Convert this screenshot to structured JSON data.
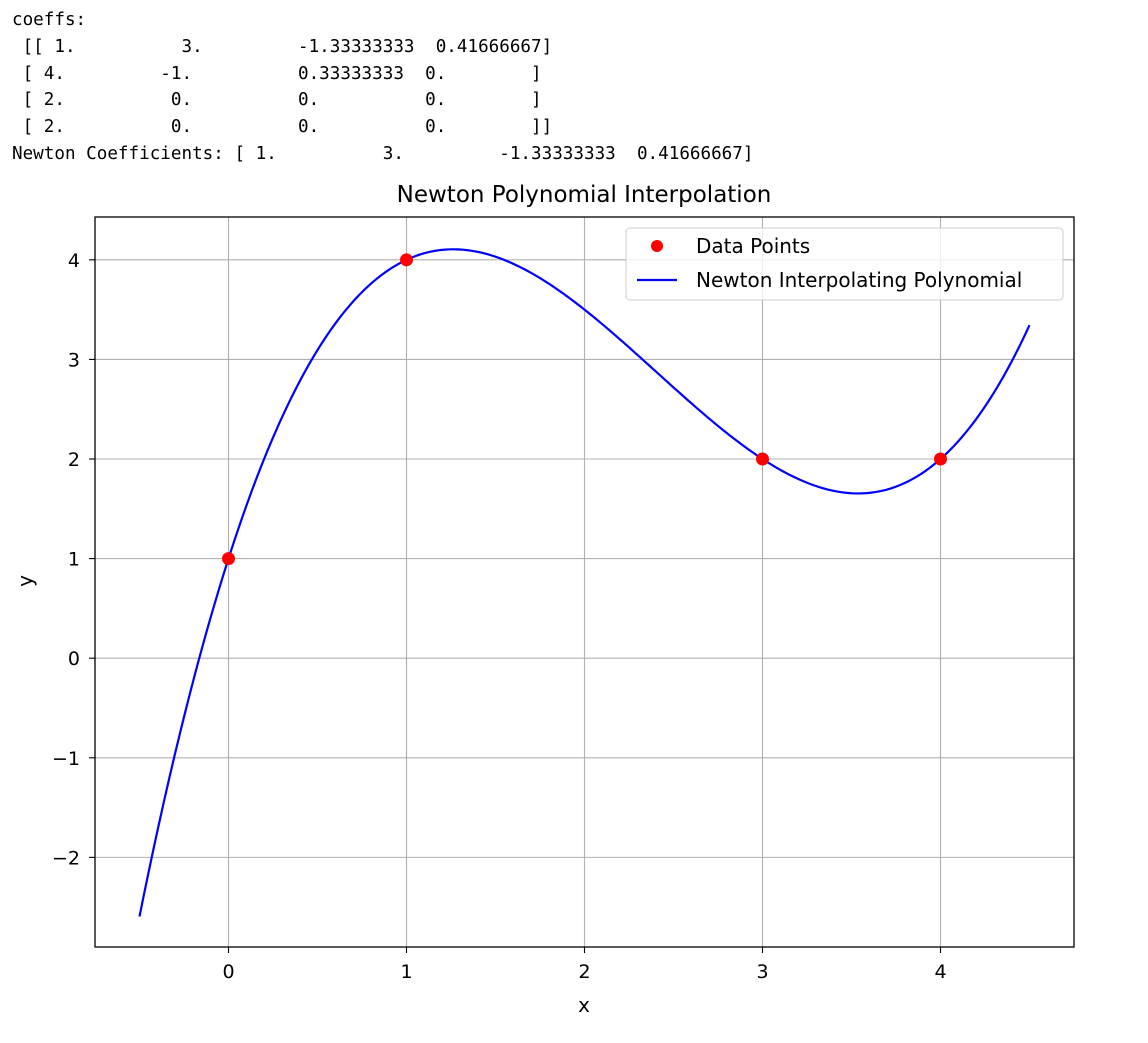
{
  "console": {
    "lines": [
      "coeffs:",
      " [[ 1.          3.         -1.33333333  0.41666667]",
      " [ 4.         -1.          0.33333333  0.        ]",
      " [ 2.          0.          0.          0.        ]",
      " [ 2.          0.          0.          0.        ]]",
      "Newton Coefficients: [ 1.          3.         -1.33333333  0.41666667]"
    ]
  },
  "chart_data": {
    "type": "line",
    "title": "Newton Polynomial Interpolation",
    "xlabel": "x",
    "ylabel": "y",
    "xlim": [
      -0.75,
      4.75
    ],
    "ylim": [
      -2.9,
      4.43
    ],
    "x_ticks": [
      0,
      1,
      2,
      3,
      4
    ],
    "x_tick_labels": [
      "0",
      "1",
      "2",
      "3",
      "4"
    ],
    "y_ticks": [
      -2,
      -1,
      0,
      1,
      2,
      3,
      4
    ],
    "y_tick_labels": [
      "−2",
      "−1",
      "0",
      "1",
      "2",
      "3",
      "4"
    ],
    "grid": true,
    "legend_position": "top-right",
    "series": [
      {
        "name": "Data Points",
        "kind": "scatter",
        "color": "#ff0000",
        "x": [
          0,
          1,
          3,
          4
        ],
        "y": [
          1,
          4,
          2,
          2
        ]
      },
      {
        "name": "Newton Interpolating Polynomial",
        "kind": "line",
        "color": "#0000ff",
        "x_range": [
          -0.5,
          4.5
        ],
        "nodes": [
          0,
          1,
          3
        ],
        "coefficients": [
          1,
          3,
          -1.33333333,
          0.41666667
        ]
      }
    ]
  }
}
